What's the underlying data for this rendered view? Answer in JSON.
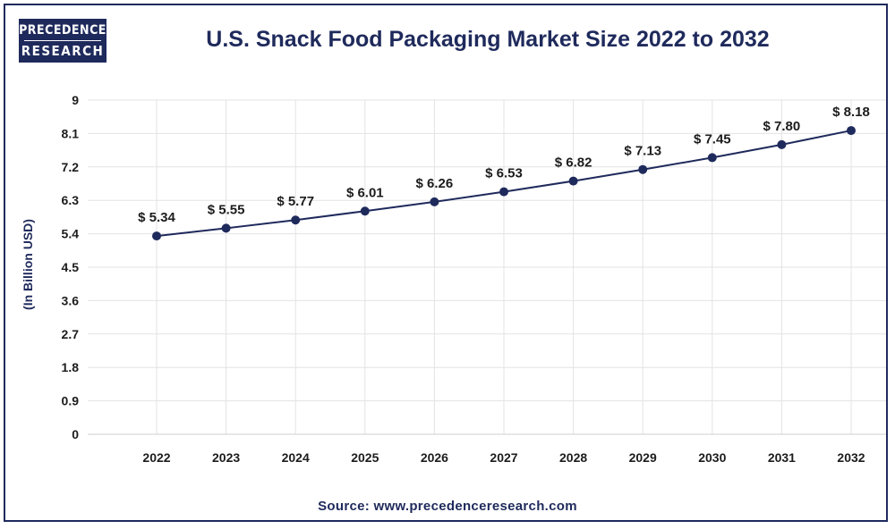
{
  "logo": {
    "line1": "PRECEDENCE",
    "line2": "RESEARCH"
  },
  "source": "Source: www.precedenceresearch.com",
  "colors": {
    "brand": "#1f2a5c",
    "grid": "#e3e3e3",
    "series": "#1f2a5c"
  },
  "chart_data": {
    "type": "line",
    "title": "U.S. Snack Food Packaging Market Size 2022 to 2032",
    "xlabel": "",
    "ylabel": "(In Billion USD)",
    "ylim": [
      0,
      9
    ],
    "yticks": [
      "0",
      "0.9",
      "1.8",
      "2.7",
      "3.6",
      "4.5",
      "5.4",
      "6.3",
      "7.2",
      "8.1",
      "9"
    ],
    "grid": true,
    "categories": [
      "2022",
      "2023",
      "2024",
      "2025",
      "2026",
      "2027",
      "2028",
      "2029",
      "2030",
      "2031",
      "2032"
    ],
    "values": [
      5.34,
      5.55,
      5.77,
      6.01,
      6.26,
      6.53,
      6.82,
      7.13,
      7.45,
      7.8,
      8.18
    ],
    "data_labels": [
      "$ 5.34",
      "$ 5.55",
      "$ 5.77",
      "$ 6.01",
      "$ 6.26",
      "$ 6.53",
      "$ 6.82",
      "$ 7.13",
      "$ 7.45",
      "$ 7.80",
      "$ 8.18"
    ]
  }
}
